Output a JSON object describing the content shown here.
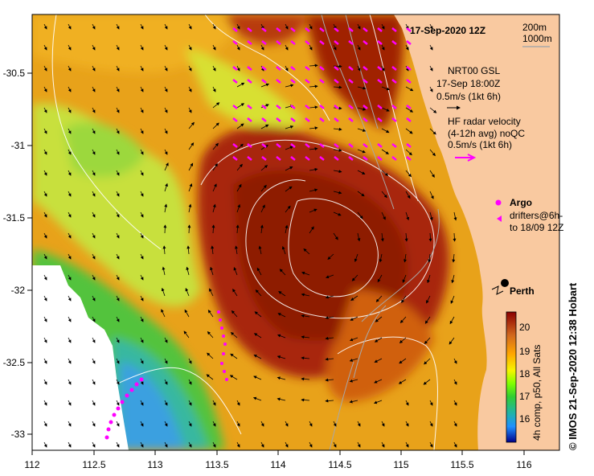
{
  "title": "17-Sep-2020 12Z",
  "isobaths": [
    "200m",
    "1000m"
  ],
  "gsl_legend": [
    "NRT00 GSL",
    "17-Sep 18:00Z",
    "0.5m/s (1kt 6h)"
  ],
  "hf_legend": [
    "HF radar velocity",
    "(4-12h avg) noQC",
    "0.5m/s (1kt 6h)"
  ],
  "argo_label": "Argo",
  "drifters_label": [
    "drifters@6h-",
    "to 18/09 12Z"
  ],
  "city": "Perth",
  "colorbar": {
    "ticks": [
      "20",
      "19",
      "18",
      "17",
      "16"
    ],
    "label": "4h comp, p50, All Sats"
  },
  "axes": {
    "x_ticks": [
      "112",
      "112.5",
      "113",
      "113.5",
      "114",
      "114.5",
      "115",
      "115.5",
      "116"
    ],
    "y_ticks": [
      "-30.5",
      "-31",
      "-31.5",
      "-32",
      "-32.5",
      "-33"
    ]
  },
  "credit": "© IMOS 21-Sep-2020 12:38 Hobart",
  "colors": {
    "land": "#f9c9a0",
    "hf_arrows": "#ff00ff",
    "drifters": "#ff00ff"
  }
}
